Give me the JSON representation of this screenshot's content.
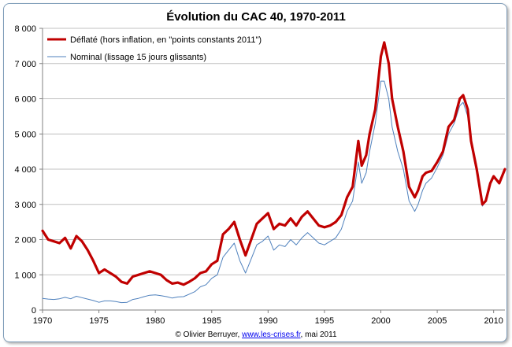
{
  "chart_data": {
    "type": "line",
    "title": "Évolution du CAC 40, 1970-2011",
    "xlim": [
      1970,
      2011
    ],
    "ylim": [
      0,
      8000
    ],
    "x_ticks": [
      1970,
      1975,
      1980,
      1985,
      1990,
      1995,
      2000,
      2005,
      2010
    ],
    "y_ticks": [
      0,
      1000,
      2000,
      3000,
      4000,
      5000,
      6000,
      7000,
      8000
    ],
    "y_tick_labels": [
      "0",
      "1 000",
      "2 000",
      "3 000",
      "4 000",
      "5 000",
      "6 000",
      "7 000",
      "8 000"
    ],
    "grid": true,
    "legend_position": "top-left",
    "series": [
      {
        "name": "Déflaté (hors inflation, en \"points constants 2011\")",
        "color": "#c00000",
        "x": [
          1970,
          1970.5,
          1971,
          1971.5,
          1972,
          1972.5,
          1973,
          1973.5,
          1974,
          1974.5,
          1975,
          1975.5,
          1976,
          1976.5,
          1977,
          1977.5,
          1978,
          1978.5,
          1979,
          1979.5,
          1980,
          1980.5,
          1981,
          1981.5,
          1982,
          1982.5,
          1983,
          1983.5,
          1984,
          1984.5,
          1985,
          1985.5,
          1986,
          1986.5,
          1987,
          1987.5,
          1988,
          1988.5,
          1989,
          1989.5,
          1990,
          1990.5,
          1991,
          1991.5,
          1992,
          1992.5,
          1993,
          1993.5,
          1994,
          1994.5,
          1995,
          1995.5,
          1996,
          1996.5,
          1997,
          1997.5,
          1998,
          1998.3,
          1998.7,
          1999,
          1999.5,
          2000,
          2000.3,
          2000.7,
          2001,
          2001.5,
          2002,
          2002.5,
          2003,
          2003.3,
          2003.7,
          2004,
          2004.5,
          2005,
          2005.5,
          2006,
          2006.5,
          2007,
          2007.3,
          2007.7,
          2008,
          2008.5,
          2009,
          2009.3,
          2009.7,
          2010,
          2010.5,
          2011
        ],
        "values": [
          2250,
          2000,
          1950,
          1900,
          2050,
          1750,
          2100,
          1950,
          1700,
          1400,
          1050,
          1150,
          1050,
          950,
          800,
          750,
          950,
          1000,
          1050,
          1100,
          1050,
          1000,
          850,
          750,
          780,
          720,
          800,
          900,
          1050,
          1100,
          1300,
          1400,
          2150,
          2300,
          2500,
          2000,
          1550,
          2000,
          2450,
          2600,
          2750,
          2300,
          2450,
          2400,
          2600,
          2400,
          2650,
          2800,
          2600,
          2400,
          2350,
          2400,
          2500,
          2700,
          3200,
          3500,
          4800,
          4100,
          4400,
          5000,
          5700,
          7200,
          7600,
          7000,
          6000,
          5200,
          4500,
          3500,
          3200,
          3400,
          3800,
          3900,
          3950,
          4200,
          4500,
          5200,
          5400,
          6000,
          6100,
          5700,
          4800,
          4000,
          3000,
          3100,
          3600,
          3800,
          3600,
          4000
        ]
      },
      {
        "name": "Nominal (lissage 15 jours glissants)",
        "color": "#4f81bd",
        "x": [
          1970,
          1970.5,
          1971,
          1971.5,
          1972,
          1972.5,
          1973,
          1973.5,
          1974,
          1974.5,
          1975,
          1975.5,
          1976,
          1976.5,
          1977,
          1977.5,
          1978,
          1978.5,
          1979,
          1979.5,
          1980,
          1980.5,
          1981,
          1981.5,
          1982,
          1982.5,
          1983,
          1983.5,
          1984,
          1984.5,
          1985,
          1985.5,
          1986,
          1986.5,
          1987,
          1987.5,
          1988,
          1988.5,
          1989,
          1989.5,
          1990,
          1990.5,
          1991,
          1991.5,
          1992,
          1992.5,
          1993,
          1993.5,
          1994,
          1994.5,
          1995,
          1995.5,
          1996,
          1996.5,
          1997,
          1997.5,
          1998,
          1998.3,
          1998.7,
          1999,
          1999.5,
          2000,
          2000.3,
          2000.7,
          2001,
          2001.5,
          2002,
          2002.5,
          2003,
          2003.3,
          2003.7,
          2004,
          2004.5,
          2005,
          2005.5,
          2006,
          2006.5,
          2007,
          2007.3,
          2007.7,
          2008,
          2008.5,
          2009,
          2009.3,
          2009.7,
          2010,
          2010.5,
          2011
        ],
        "values": [
          330,
          310,
          300,
          320,
          360,
          320,
          390,
          350,
          310,
          270,
          220,
          260,
          260,
          240,
          210,
          220,
          300,
          330,
          380,
          420,
          430,
          410,
          380,
          340,
          370,
          380,
          450,
          520,
          660,
          720,
          900,
          1000,
          1500,
          1700,
          1900,
          1400,
          1050,
          1450,
          1850,
          1950,
          2100,
          1700,
          1850,
          1800,
          2000,
          1850,
          2050,
          2200,
          2050,
          1900,
          1850,
          1950,
          2050,
          2300,
          2800,
          3100,
          4200,
          3600,
          3900,
          4500,
          5300,
          6500,
          6500,
          6000,
          5200,
          4500,
          4000,
          3100,
          2800,
          3000,
          3400,
          3600,
          3750,
          4050,
          4400,
          5000,
          5300,
          5800,
          5900,
          5500,
          4700,
          3900,
          2950,
          3100,
          3600,
          3800,
          3600,
          4000
        ]
      }
    ],
    "credit_prefix": "© Olivier Berruyer, ",
    "credit_link": "www.les-crises.fr",
    "credit_suffix": ", mai 2011"
  }
}
